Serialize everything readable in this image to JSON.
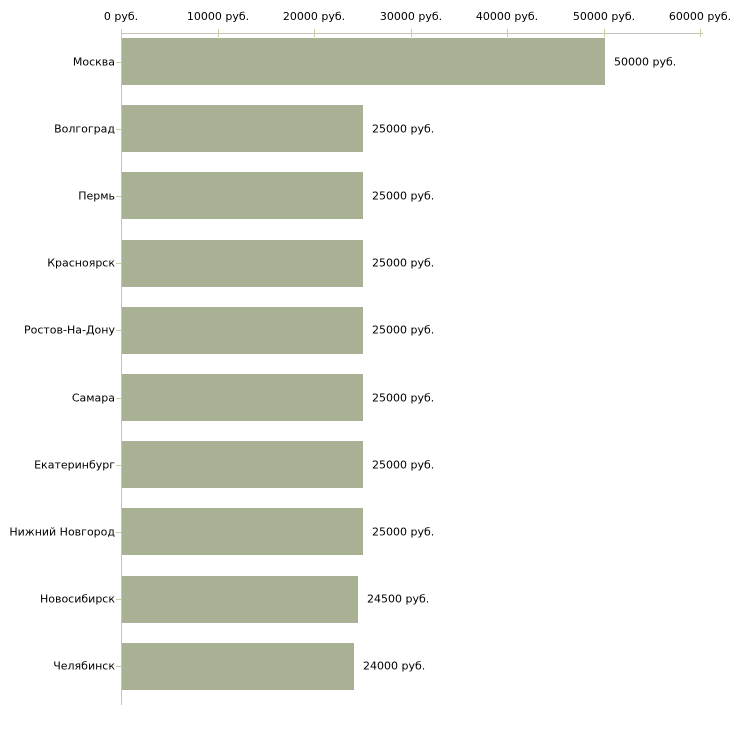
{
  "chart_data": {
    "type": "bar",
    "orientation": "horizontal",
    "title": "",
    "xlabel": "",
    "ylabel": "",
    "unit": "руб.",
    "categories": [
      "Москва",
      "Волгоград",
      "Пермь",
      "Красноярск",
      "Ростов-На-Дону",
      "Самара",
      "Екатеринбург",
      "Нижний Новгород",
      "Новосибирск",
      "Челябинск"
    ],
    "values": [
      50000,
      25000,
      25000,
      25000,
      25000,
      25000,
      25000,
      25000,
      24500,
      24000
    ],
    "value_labels": [
      "50000 руб.",
      "25000 руб.",
      "25000 руб.",
      "25000 руб.",
      "25000 руб.",
      "25000 руб.",
      "25000 руб.",
      "25000 руб.",
      "24500 руб.",
      "24000 руб."
    ],
    "x_ticks": [
      0,
      10000,
      20000,
      30000,
      40000,
      50000,
      60000
    ],
    "x_tick_labels": [
      "0 руб.",
      "10000 руб.",
      "20000 руб.",
      "30000 руб.",
      "40000 руб.",
      "50000 руб.",
      "60000 руб."
    ],
    "xlim": [
      0,
      60000
    ],
    "grid": false,
    "legend": false,
    "axis_position": "top",
    "colors": {
      "bar": "#a8b194",
      "axis_line": "#c4c4bc",
      "tick_mark": "#c8cda2",
      "text": "#000000",
      "background": "#ffffff"
    }
  }
}
